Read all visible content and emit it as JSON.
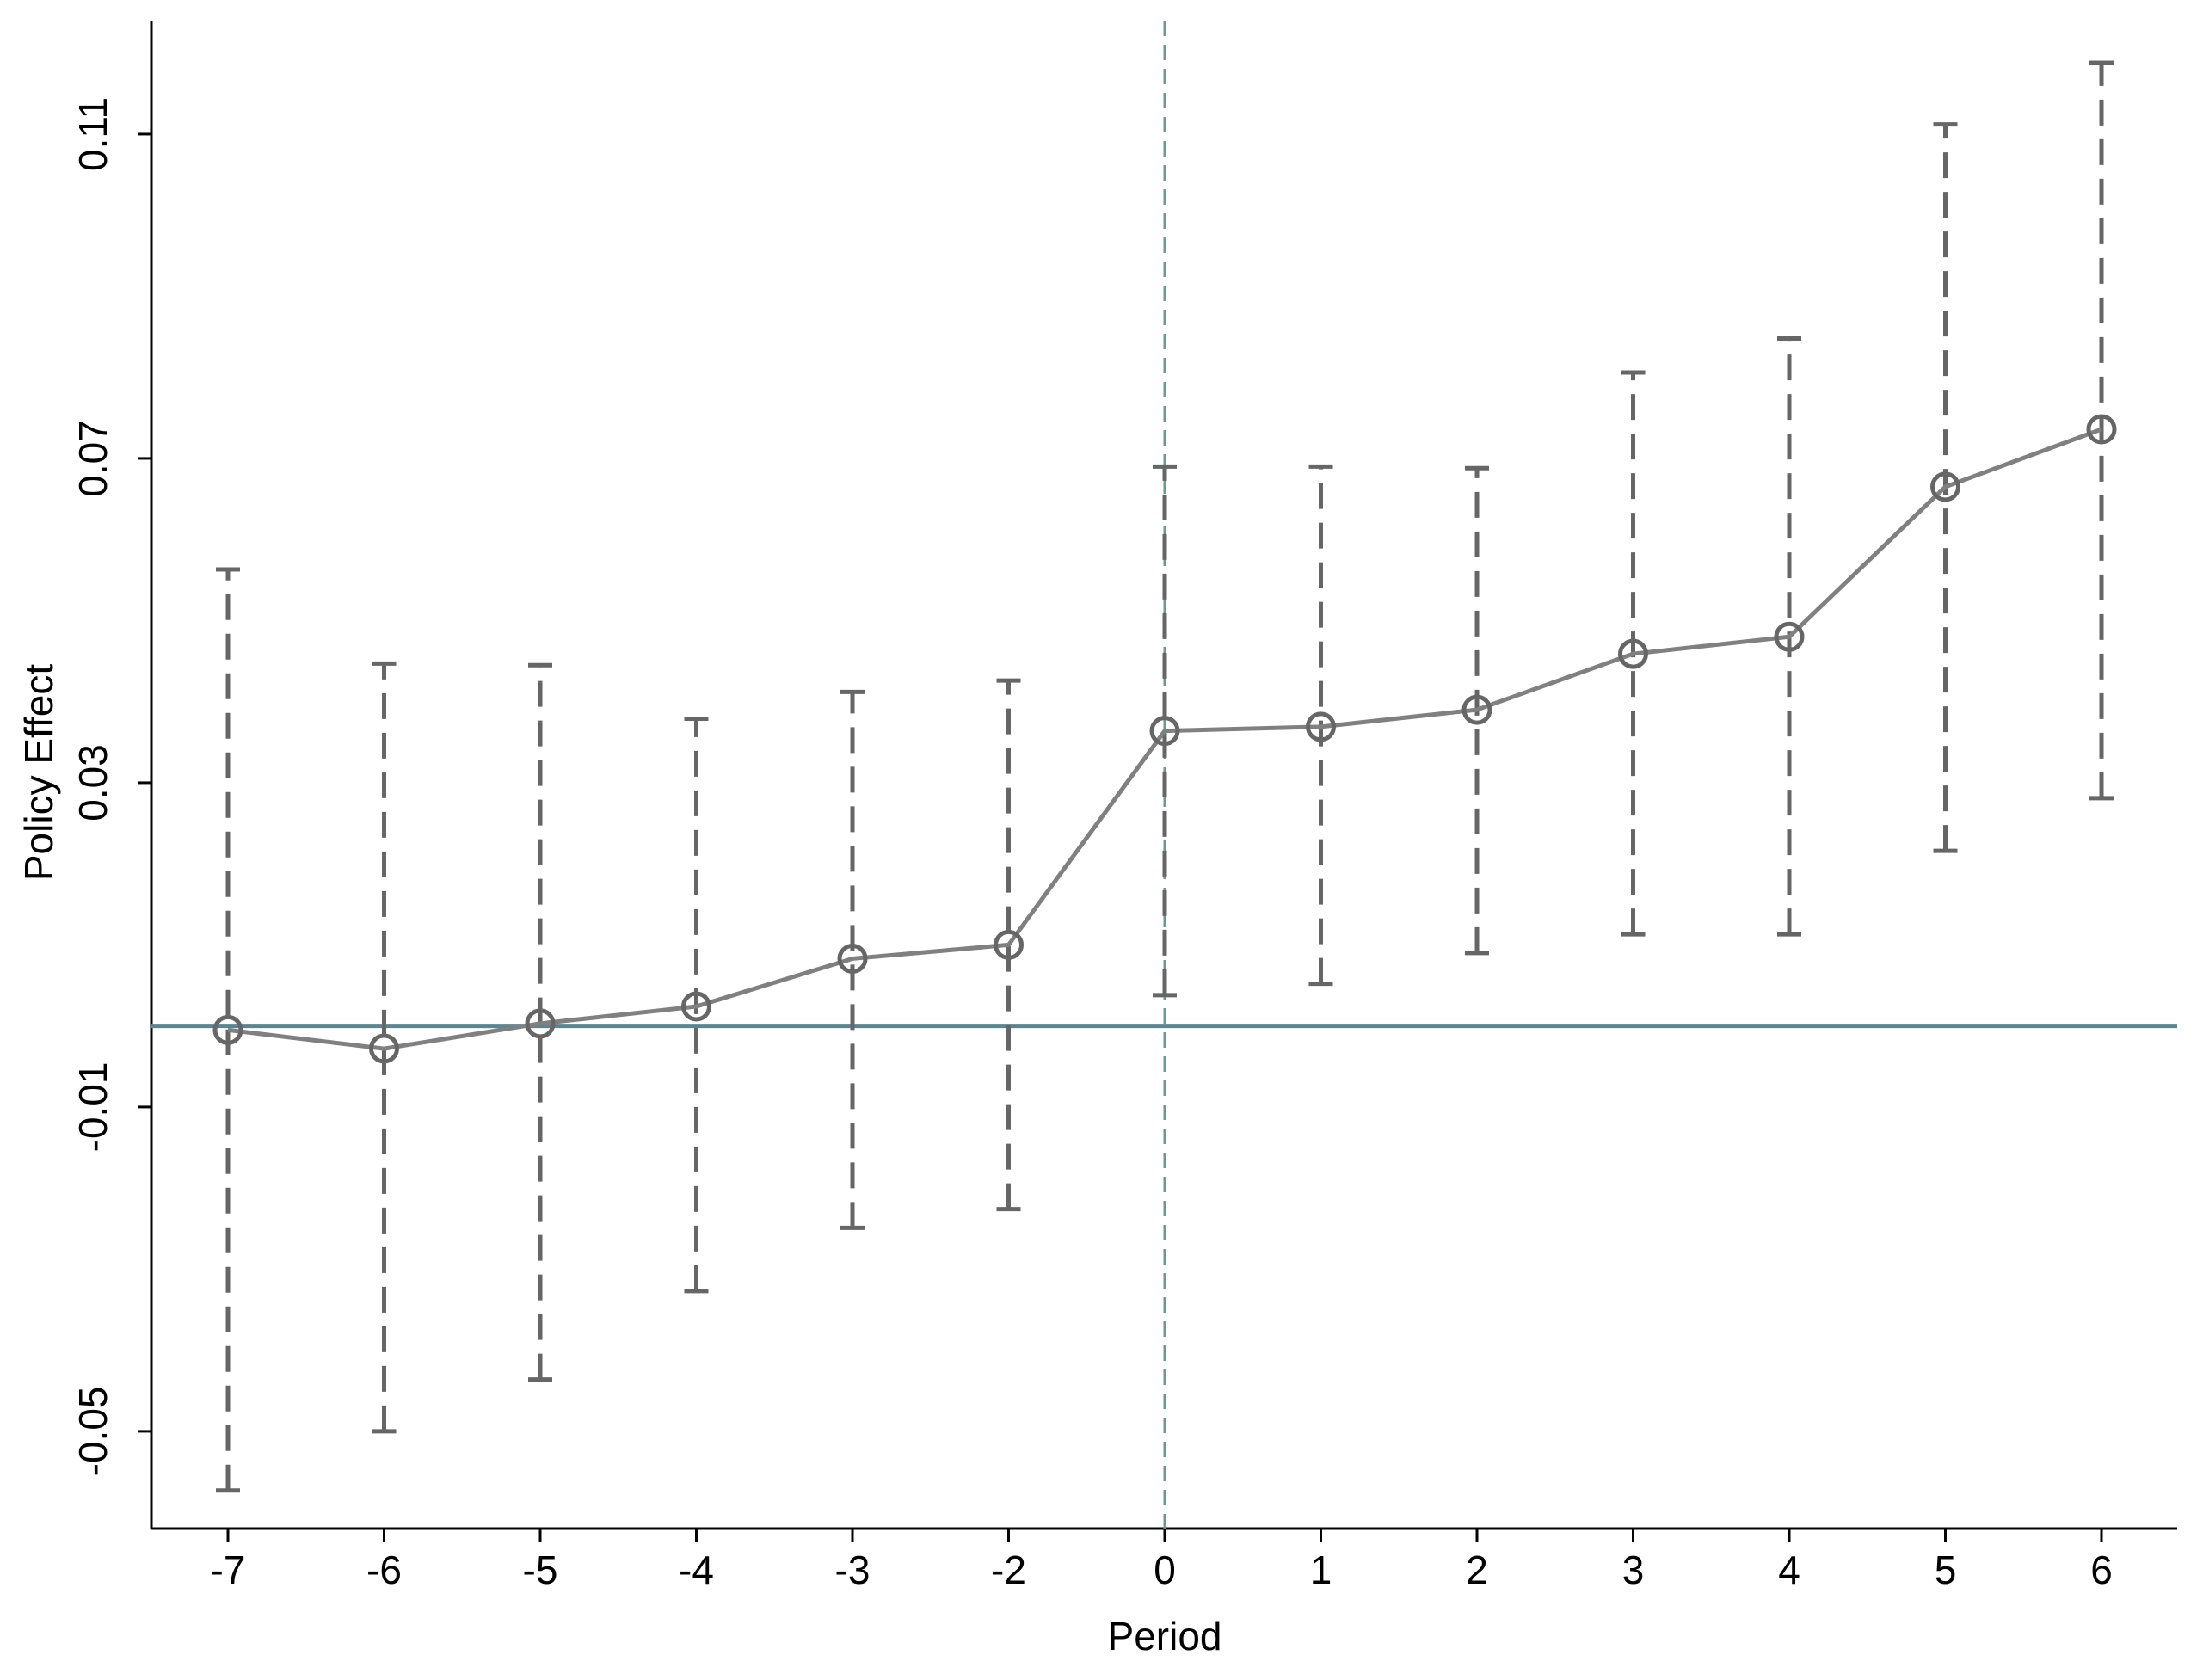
{
  "chart_data": {
    "type": "errorline",
    "x_label": "Period",
    "y_label": "Policy Effect",
    "categories": [
      "-7",
      "-6",
      "-5",
      "-4",
      "-3",
      "-2",
      "0",
      "1",
      "2",
      "3",
      "4",
      "5",
      "6"
    ],
    "values": [
      -0.0005,
      -0.0028,
      0.0003,
      0.0024,
      0.0083,
      0.01,
      0.0364,
      0.0369,
      0.039,
      0.0459,
      0.048,
      0.0665,
      0.0736
    ],
    "ci_low": [
      -0.0573,
      -0.05,
      -0.0436,
      -0.0327,
      -0.0249,
      -0.0226,
      0.0038,
      0.0052,
      0.009,
      0.0113,
      0.0113,
      0.0216,
      0.0281
    ],
    "ci_high": [
      0.0563,
      0.0447,
      0.0445,
      0.0379,
      0.0412,
      0.0426,
      0.069,
      0.069,
      0.0688,
      0.0806,
      0.0848,
      0.1112,
      0.1188
    ],
    "color": "#808080",
    "marker_color": "#666666",
    "errorbar_color": "#666666",
    "hline": 0,
    "hline_color": "#5a8591",
    "vline_category": 6,
    "vline_color": "#6a9a90",
    "ylim": [
      -0.062,
      0.124
    ],
    "yticks": [
      -0.05,
      -0.01,
      0.03,
      0.07,
      0.11
    ]
  }
}
